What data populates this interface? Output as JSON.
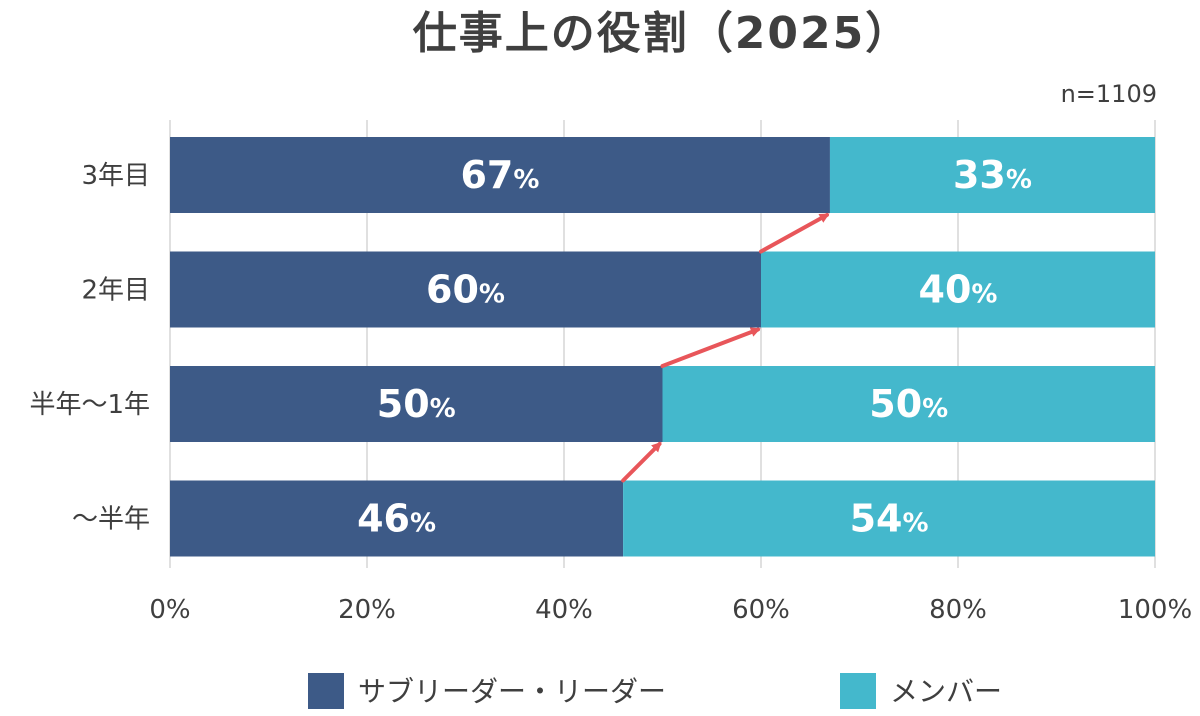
{
  "chart_data": {
    "type": "bar",
    "orientation": "horizontal",
    "stacked": true,
    "title": "仕事上の役割（2025）",
    "note": "n=1109",
    "categories": [
      "3年目",
      "2年目",
      "半年〜1年",
      "〜半年"
    ],
    "series": [
      {
        "name": "サブリーダー・リーダー",
        "values": [
          67,
          60,
          50,
          46
        ],
        "color": "#3d5a87"
      },
      {
        "name": "メンバー",
        "values": [
          33,
          40,
          50,
          54
        ],
        "color": "#44b8cc"
      }
    ],
    "value_suffix": "%",
    "xlim": [
      0,
      100
    ],
    "xticks": [
      "0%",
      "20%",
      "40%",
      "60%",
      "80%",
      "100%"
    ],
    "grid": true,
    "legend": "bottom",
    "connector_color": "#e8565a"
  }
}
